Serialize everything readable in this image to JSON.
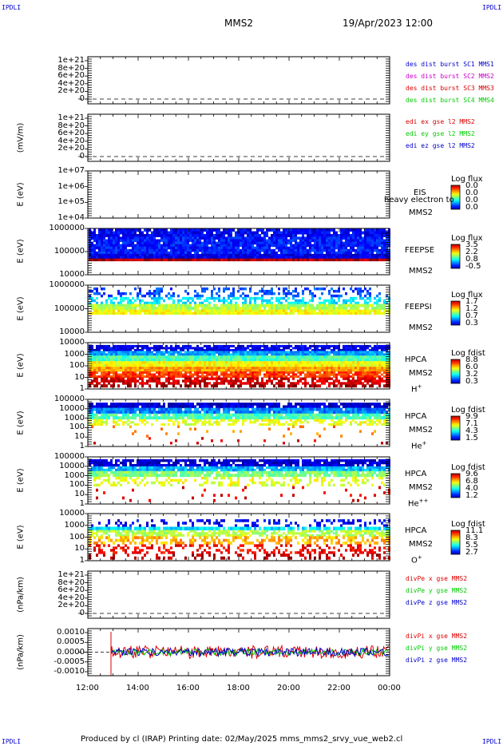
{
  "corners": {
    "tl": "IPDLI",
    "tr": "IPDLI",
    "bl": "IPDLI",
    "br": "IPDLI"
  },
  "header": {
    "spacecraft": "MMS2",
    "date": "19/Apr/2023 12:00"
  },
  "footer": {
    "text": "Produced by cl (IRAP)   Printing date: 02/May/2025   mms_mms2_srvy_vue_web2.cl"
  },
  "x_ticks": [
    "12:00",
    "14:00",
    "16:00",
    "18:00",
    "20:00",
    "22:00",
    "00:00"
  ],
  "colors": {
    "red": "#dd0000",
    "green": "#00cc00",
    "blue": "#0000cc",
    "magenta": "#cc00cc"
  },
  "panels": [
    {
      "ylabel": "",
      "ticks": [
        "1e+21",
        "8e+20",
        "6e+20",
        "4e+20",
        "2e+20",
        "0"
      ],
      "legend": [
        {
          "t": "des dist burst SC1 MMS1",
          "c": "blue"
        },
        {
          "t": "des dist burst SC2 MMS2",
          "c": "magenta"
        },
        {
          "t": "des dist burst SC3 MMS3",
          "c": "red"
        },
        {
          "t": "des dist burst SC4 MMS4",
          "c": "green"
        }
      ]
    },
    {
      "ylabel": "(mV/m)",
      "ticks": [
        "1e+21",
        "8e+20",
        "6e+20",
        "4e+20",
        "2e+20",
        "0"
      ],
      "legend": [
        {
          "t": "edi ex gse l2 MMS2",
          "c": "red"
        },
        {
          "t": "edi ey gse l2 MMS2",
          "c": "green"
        },
        {
          "t": "edi ez gse l2 MMS2",
          "c": "blue"
        }
      ]
    },
    {
      "ylabel": "E (eV)",
      "ticks": [
        "1e+07",
        "1e+06",
        "1e+05",
        "1e+04"
      ],
      "inst": [
        "EIS",
        "MMS2"
      ],
      "note": "heavy electron to",
      "cbtitle": "Log flux",
      "cbvals": [
        "0.0",
        "0.0",
        "0.0",
        "0.0"
      ]
    },
    {
      "ylabel": "E (eV)",
      "ticks": [
        "1000000",
        "100000",
        "10000"
      ],
      "inst": [
        "FEEPSE",
        "MMS2"
      ],
      "cbtitle": "Log flux",
      "cbvals": [
        "3.5",
        "2.2",
        "0.8",
        "-0.5"
      ]
    },
    {
      "ylabel": "E (eV)",
      "ticks": [
        "1000000",
        "100000",
        "10000"
      ],
      "inst": [
        "FEEPSI",
        "MMS2"
      ],
      "cbtitle": "Log flux",
      "cbvals": [
        "1.7",
        "1.2",
        "0.7",
        "0.3"
      ]
    },
    {
      "ylabel": "E (eV)",
      "ticks": [
        "10000",
        "1000",
        "100",
        "10",
        "1"
      ],
      "inst": [
        "HPCA",
        "MMS2"
      ],
      "species": "H",
      "sup": "+",
      "cbtitle": "Log fdist",
      "cbvals": [
        "8.8",
        "6.0",
        "3.2",
        "0.3"
      ]
    },
    {
      "ylabel": "E (eV)",
      "ticks": [
        "100000",
        "10000",
        "1000",
        "100",
        "10",
        "1"
      ],
      "inst": [
        "HPCA",
        "MMS2"
      ],
      "species": "He",
      "sup": "+",
      "cbtitle": "Log fdist",
      "cbvals": [
        "9.9",
        "7.1",
        "4.3",
        "1.5"
      ]
    },
    {
      "ylabel": "E (eV)",
      "ticks": [
        "100000",
        "10000",
        "1000",
        "100",
        "10",
        "1"
      ],
      "inst": [
        "HPCA",
        "MMS2"
      ],
      "species": "He",
      "sup": "++",
      "cbtitle": "Log fdist",
      "cbvals": [
        "9.6",
        "6.8",
        "4.0",
        "1.2"
      ]
    },
    {
      "ylabel": "E (eV)",
      "ticks": [
        "10000",
        "1000",
        "100",
        "10",
        "1"
      ],
      "inst": [
        "HPCA",
        "MMS2"
      ],
      "species": "O",
      "sup": "+",
      "cbtitle": "Log fdist",
      "cbvals": [
        "11.1",
        "8.3",
        "5.5",
        "2.7"
      ]
    },
    {
      "ylabel": "(nPa/km)",
      "ticks": [
        "1e+21",
        "8e+20",
        "6e+20",
        "4e+20",
        "2e+20",
        "0"
      ],
      "legend": [
        {
          "t": "divPe x gse MMS2",
          "c": "red"
        },
        {
          "t": "divPe y gse MMS2",
          "c": "green"
        },
        {
          "t": "divPe z gse MMS2",
          "c": "blue"
        }
      ]
    },
    {
      "ylabel": "(nPa/km)",
      "ticks": [
        "0.0010",
        "0.0005",
        "0.0000",
        "-0.0005",
        "-0.0010"
      ],
      "legend": [
        {
          "t": "divPi x gse MMS2",
          "c": "red"
        },
        {
          "t": "divPi y gse MMS2",
          "c": "green"
        },
        {
          "t": "divPi z gse MMS2",
          "c": "blue"
        }
      ]
    }
  ],
  "chart_data": {
    "type": "heatmap",
    "title": "MMS2",
    "x_range": [
      "12:00",
      "00:00"
    ],
    "ylim_line_panels": [
      0,
      1e+21
    ],
    "ylim_divPi": [
      -0.001,
      0.001
    ]
  }
}
